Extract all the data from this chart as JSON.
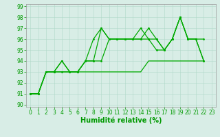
{
  "line1_x": [
    0,
    1,
    2,
    3,
    4,
    5,
    6,
    7,
    8,
    9,
    10,
    11,
    12,
    13,
    14,
    15,
    16,
    17,
    18,
    19,
    20,
    21,
    22
  ],
  "line1_y": [
    91,
    91,
    93,
    93,
    94,
    93,
    93,
    94,
    96,
    97,
    96,
    96,
    96,
    96,
    96,
    97,
    96,
    95,
    96,
    98,
    96,
    96,
    94
  ],
  "line2_x": [
    0,
    1,
    2,
    3,
    4,
    5,
    6,
    7,
    8,
    9,
    10,
    11,
    12,
    13,
    14,
    15,
    16,
    17,
    18,
    19,
    20,
    21,
    22
  ],
  "line2_y": [
    91,
    91,
    93,
    93,
    93,
    93,
    93,
    94,
    94,
    97,
    96,
    96,
    96,
    96,
    97,
    96,
    96,
    95,
    96,
    98,
    96,
    96,
    96
  ],
  "line3_x": [
    0,
    1,
    2,
    3,
    4,
    5,
    6,
    7,
    8,
    9,
    10,
    11,
    12,
    13,
    14,
    15,
    16,
    17,
    18,
    19,
    20,
    21,
    22
  ],
  "line3_y": [
    91,
    91,
    93,
    93,
    94,
    93,
    93,
    94,
    94,
    94,
    96,
    96,
    96,
    96,
    96,
    96,
    95,
    95,
    96,
    98,
    96,
    96,
    94
  ],
  "line4_x": [
    0,
    1,
    2,
    3,
    4,
    5,
    6,
    7,
    8,
    9,
    10,
    11,
    12,
    13,
    14,
    15,
    16,
    17,
    18,
    19,
    20,
    21,
    22
  ],
  "line4_y": [
    91,
    91,
    93,
    93,
    93,
    93,
    93,
    93,
    93,
    93,
    93,
    93,
    93,
    93,
    93,
    94,
    94,
    94,
    94,
    94,
    94,
    94,
    94
  ],
  "xlim": [
    -0.5,
    23.5
  ],
  "ylim": [
    89.8,
    99.2
  ],
  "yticks": [
    90,
    91,
    92,
    93,
    94,
    95,
    96,
    97,
    98,
    99
  ],
  "xticks": [
    0,
    1,
    2,
    3,
    4,
    5,
    6,
    7,
    8,
    9,
    10,
    11,
    12,
    13,
    14,
    15,
    16,
    17,
    18,
    19,
    20,
    21,
    22,
    23
  ],
  "xlabel": "Humidité relative (%)",
  "xlabel_fontsize": 7,
  "tick_fontsize": 5.5,
  "tick_color": "#009900",
  "xlabel_color": "#009900",
  "grid_color": "#b0d8c8",
  "bg_color": "#d8ede6",
  "line_color": "#00aa00",
  "marker_size": 2.0,
  "linewidth": 0.9
}
